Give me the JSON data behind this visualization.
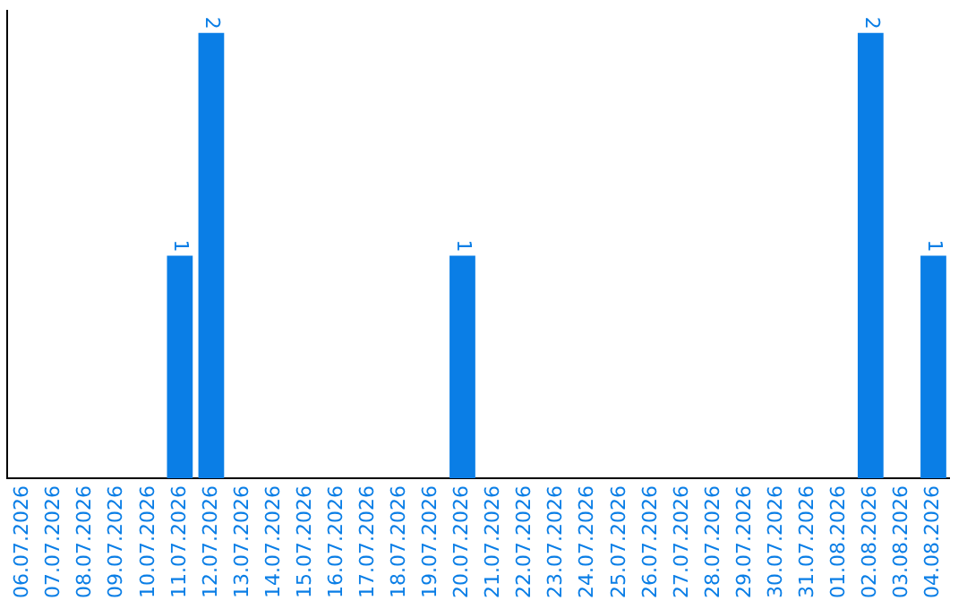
{
  "chart_data": {
    "type": "bar",
    "categories": [
      "06.07.2026",
      "07.07.2026",
      "08.07.2026",
      "09.07.2026",
      "10.07.2026",
      "11.07.2026",
      "12.07.2026",
      "13.07.2026",
      "14.07.2026",
      "15.07.2026",
      "16.07.2026",
      "17.07.2026",
      "18.07.2026",
      "19.07.2026",
      "20.07.2026",
      "21.07.2026",
      "22.07.2026",
      "23.07.2026",
      "24.07.2026",
      "25.07.2026",
      "26.07.2026",
      "27.07.2026",
      "28.07.2026",
      "29.07.2026",
      "30.07.2026",
      "31.07.2026",
      "01.08.2026",
      "02.08.2026",
      "03.08.2026",
      "04.08.2026"
    ],
    "values": [
      0,
      0,
      0,
      0,
      0,
      1,
      2,
      0,
      0,
      0,
      0,
      0,
      0,
      0,
      1,
      0,
      0,
      0,
      0,
      0,
      0,
      0,
      0,
      0,
      0,
      0,
      0,
      2,
      0,
      1
    ],
    "value_labels": [
      null,
      null,
      null,
      null,
      null,
      "1",
      "2",
      null,
      null,
      null,
      null,
      null,
      null,
      null,
      "1",
      null,
      null,
      null,
      null,
      null,
      null,
      null,
      null,
      null,
      null,
      null,
      null,
      "2",
      null,
      "1"
    ],
    "color": "#0a7ee6",
    "tick_labels": "x"
  }
}
